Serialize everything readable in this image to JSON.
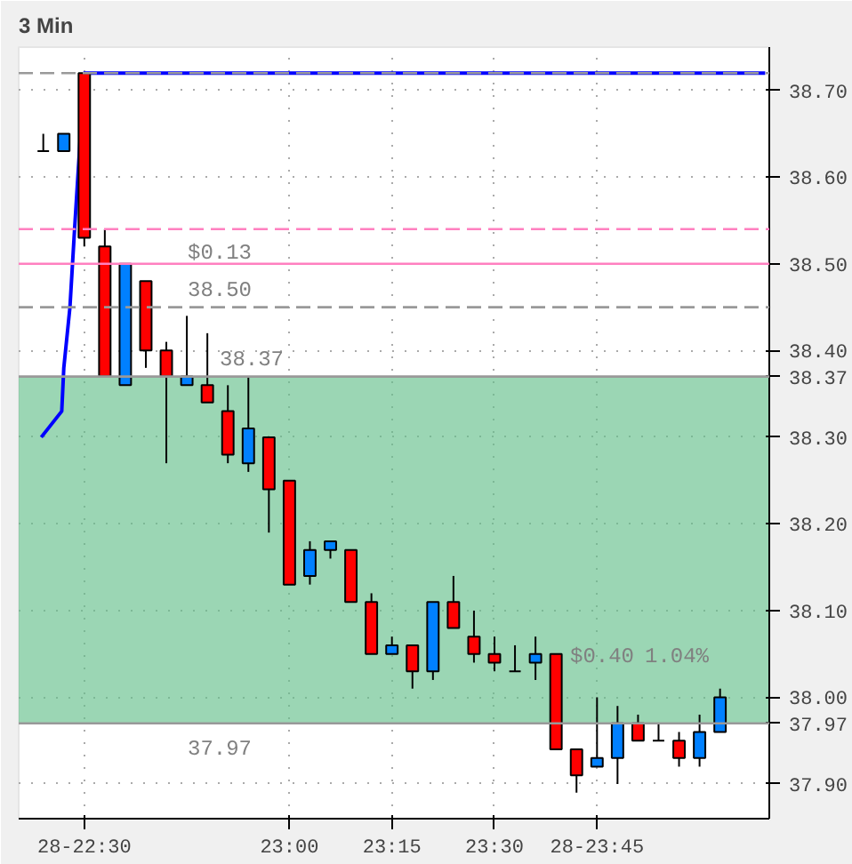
{
  "chart_data": {
    "type": "candlestick",
    "title": "3 Min",
    "x": [
      22.4,
      22.45,
      22.5,
      22.55,
      22.6,
      22.65,
      22.7,
      22.75,
      22.8,
      22.85,
      22.9,
      22.95,
      23.0,
      23.05,
      23.1,
      23.15,
      23.2,
      23.25,
      23.3,
      23.35,
      23.4,
      23.45,
      23.5,
      23.55,
      23.6,
      23.65,
      23.7,
      23.75,
      23.8,
      23.85,
      23.9,
      23.95,
      24.0,
      24.05
    ],
    "ohlc": [
      [
        38.63,
        38.65,
        38.63,
        38.63
      ],
      [
        38.63,
        38.65,
        38.63,
        38.65
      ],
      [
        38.72,
        38.72,
        38.52,
        38.53
      ],
      [
        38.52,
        38.54,
        38.37,
        38.37
      ],
      [
        38.36,
        38.5,
        38.36,
        38.5
      ],
      [
        38.48,
        38.48,
        38.38,
        38.4
      ],
      [
        38.4,
        38.41,
        38.27,
        38.37
      ],
      [
        38.36,
        38.44,
        38.36,
        38.37
      ],
      [
        38.36,
        38.42,
        38.34,
        38.34
      ],
      [
        38.33,
        38.36,
        38.27,
        38.28
      ],
      [
        38.27,
        38.37,
        38.26,
        38.31
      ],
      [
        38.3,
        38.3,
        38.19,
        38.24
      ],
      [
        38.25,
        38.25,
        38.13,
        38.13
      ],
      [
        38.14,
        38.18,
        38.13,
        38.17
      ],
      [
        38.17,
        38.18,
        38.16,
        38.18
      ],
      [
        38.17,
        38.17,
        38.11,
        38.11
      ],
      [
        38.11,
        38.12,
        38.05,
        38.05
      ],
      [
        38.05,
        38.07,
        38.05,
        38.06
      ],
      [
        38.06,
        38.06,
        38.01,
        38.03
      ],
      [
        38.03,
        38.11,
        38.02,
        38.11
      ],
      [
        38.11,
        38.14,
        38.08,
        38.08
      ],
      [
        38.07,
        38.1,
        38.04,
        38.05
      ],
      [
        38.05,
        38.07,
        38.03,
        38.04
      ],
      [
        38.03,
        38.06,
        38.03,
        38.03
      ],
      [
        38.04,
        38.07,
        38.02,
        38.05
      ],
      [
        38.05,
        38.05,
        37.94,
        37.94
      ],
      [
        37.94,
        37.94,
        37.89,
        37.91
      ],
      [
        37.92,
        38.0,
        37.92,
        37.93
      ],
      [
        37.93,
        37.99,
        37.9,
        37.97
      ],
      [
        37.97,
        37.98,
        37.95,
        37.95
      ],
      [
        37.95,
        37.97,
        37.95,
        37.95
      ],
      [
        37.95,
        37.96,
        37.92,
        37.93
      ],
      [
        37.93,
        37.98,
        37.92,
        37.96
      ],
      [
        37.96,
        38.01,
        37.96,
        38.0
      ]
    ],
    "colors": [
      "#000000",
      "#0080ff",
      "#ff0000",
      "#ff0000",
      "#0080ff",
      "#ff0000",
      "#ff0000",
      "#0080ff",
      "#ff0000",
      "#ff0000",
      "#0080ff",
      "#ff0000",
      "#ff0000",
      "#0080ff",
      "#0080ff",
      "#ff0000",
      "#ff0000",
      "#0080ff",
      "#ff0000",
      "#0080ff",
      "#ff0000",
      "#ff0000",
      "#ff0000",
      "#000000",
      "#0080ff",
      "#ff0000",
      "#ff0000",
      "#0080ff",
      "#0080ff",
      "#ff0000",
      "#000000",
      "#ff0000",
      "#0080ff",
      "#0080ff"
    ],
    "series": [
      {
        "type": "line",
        "color": "#0000ff",
        "x": [
          22.395,
          22.445,
          22.45,
          22.465,
          22.475,
          22.5,
          24.16
        ],
        "values": [
          38.3,
          38.33,
          38.38,
          38.45,
          38.53,
          38.72,
          38.72
        ]
      }
    ],
    "xlim": [
      22.34,
      24.17
    ],
    "ylim": [
      37.86,
      38.75
    ],
    "xticks": [
      {
        "value": 22.5,
        "label": "28-22:30"
      },
      {
        "value": 23.0,
        "label": "23:00"
      },
      {
        "value": 23.25,
        "label": "23:15"
      },
      {
        "value": 23.5,
        "label": "23:30"
      },
      {
        "value": 23.75,
        "label": "28-23:45"
      }
    ],
    "yticks": [
      {
        "value": 37.9,
        "label": "37.90"
      },
      {
        "value": 38.0,
        "label": "38.00"
      },
      {
        "value": 38.1,
        "label": "38.10"
      },
      {
        "value": 38.2,
        "label": "38.20"
      },
      {
        "value": 38.3,
        "label": "38.30"
      },
      {
        "value": 38.4,
        "label": "38.40"
      },
      {
        "value": 38.5,
        "label": "38.50"
      },
      {
        "value": 38.6,
        "label": "38.60"
      },
      {
        "value": 38.7,
        "label": "38.70"
      }
    ],
    "bands": [
      {
        "axis": "y",
        "from": 37.97,
        "to": 38.37,
        "color": "#66c08c"
      }
    ],
    "ref_lines": [
      {
        "axis": "y",
        "value": 38.72,
        "color": "#999999",
        "line_style": "dashed"
      },
      {
        "axis": "y",
        "value": 38.54,
        "color": "#ff80c0",
        "line_style": "dashed"
      },
      {
        "axis": "y",
        "value": 38.5,
        "color": "#ff80c0",
        "line_style": "solid"
      },
      {
        "axis": "y",
        "value": 38.45,
        "color": "#999999",
        "line_style": "dashed"
      },
      {
        "axis": "y",
        "value": 38.37,
        "color": "#999999",
        "line_style": "solid",
        "label": "38.37"
      },
      {
        "axis": "y",
        "value": 37.97,
        "color": "#999999",
        "line_style": "solid",
        "label": "37.97"
      }
    ],
    "annotations": [
      "$0.13",
      "38.50",
      "38.37",
      "$0.40",
      "37.97",
      "1.04%"
    ],
    "grid": true
  }
}
